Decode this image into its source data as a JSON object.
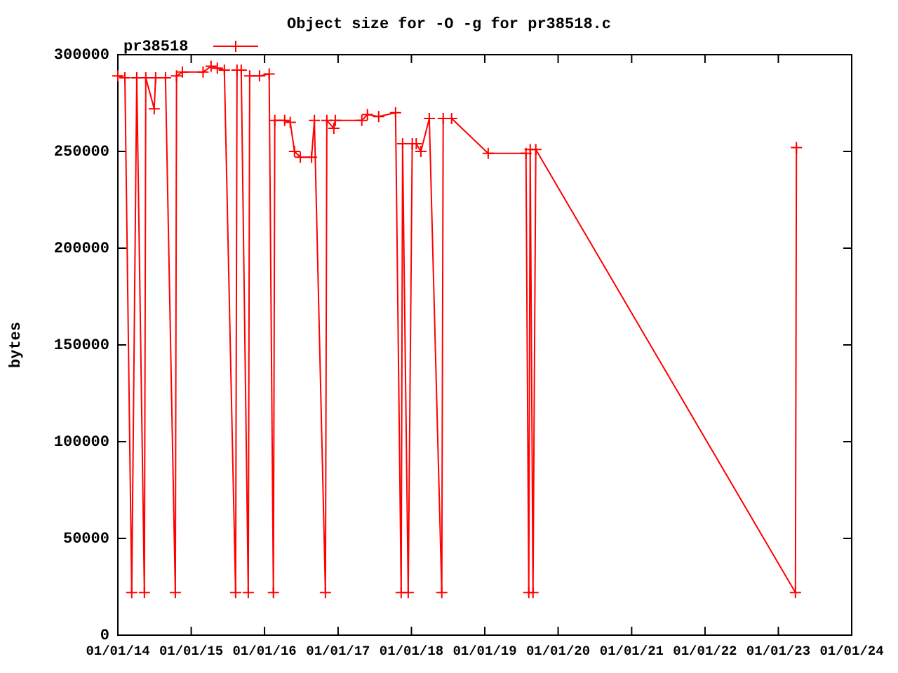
{
  "chart_data": {
    "type": "line",
    "title": "Object size for -O -g for pr38518.c",
    "ylabel": "bytes",
    "x": [
      "2014-01-01",
      "2014-02-05",
      "2014-03-11",
      "2014-04-05",
      "2014-05-13",
      "2014-05-20",
      "2014-07-01",
      "2014-07-08",
      "2014-08-26",
      "2014-10-14",
      "2014-10-20",
      "2014-11-18",
      "2015-03-01",
      "2015-04-10",
      "2015-05-11",
      "2015-06-15",
      "2015-08-10",
      "2015-08-17",
      "2015-09-07",
      "2015-10-12",
      "2015-10-19",
      "2015-12-07",
      "2016-01-24",
      "2016-02-14",
      "2016-02-21",
      "2016-04-10",
      "2016-05-08",
      "2016-05-29",
      "2016-06-27",
      "2016-08-22",
      "2016-09-05",
      "2016-10-30",
      "2016-11-06",
      "2016-12-11",
      "2016-12-18",
      "2017-04-29",
      "2017-05-27",
      "2017-07-22",
      "2017-10-14",
      "2017-11-11",
      "2017-11-18",
      "2017-12-16",
      "2018-01-05",
      "2018-01-25",
      "2018-02-17",
      "2018-03-31",
      "2018-06-01",
      "2018-06-08",
      "2018-07-20",
      "2019-01-18",
      "2019-07-25",
      "2019-08-08",
      "2019-08-15",
      "2019-08-29",
      "2019-09-12",
      "2023-03-27",
      "2023-04-01"
    ],
    "series": [
      {
        "name": "pr38518",
        "color": "#ff0000",
        "values": [
          289000,
          288000,
          22000,
          288000,
          22000,
          288000,
          272000,
          288000,
          288000,
          22000,
          289000,
          291000,
          291000,
          294000,
          293000,
          292000,
          22000,
          292000,
          292000,
          22000,
          289000,
          289000,
          290000,
          22000,
          266000,
          266000,
          265000,
          250000,
          247000,
          247000,
          266000,
          22000,
          266000,
          262000,
          266000,
          266000,
          269000,
          268000,
          270000,
          22000,
          254000,
          22000,
          254000,
          254000,
          250000,
          267000,
          22000,
          267000,
          267000,
          249000,
          249000,
          22000,
          251000,
          22000,
          251000,
          22000,
          252000
        ]
      }
    ],
    "xlim": [
      "2014-01-01",
      "2024-01-01"
    ],
    "xticks": [
      {
        "value": "2014-01-01",
        "label": "01/01/14"
      },
      {
        "value": "2015-01-01",
        "label": "01/01/15"
      },
      {
        "value": "2016-01-01",
        "label": "01/01/16"
      },
      {
        "value": "2017-01-01",
        "label": "01/01/17"
      },
      {
        "value": "2018-01-01",
        "label": "01/01/18"
      },
      {
        "value": "2019-01-01",
        "label": "01/01/19"
      },
      {
        "value": "2020-01-01",
        "label": "01/01/20"
      },
      {
        "value": "2021-01-01",
        "label": "01/01/21"
      },
      {
        "value": "2022-01-01",
        "label": "01/01/22"
      },
      {
        "value": "2023-01-01",
        "label": "01/01/23"
      },
      {
        "value": "2024-01-01",
        "label": "01/01/24"
      }
    ],
    "ylim": [
      0,
      300000
    ],
    "yticks": [
      0,
      50000,
      100000,
      150000,
      200000,
      250000,
      300000
    ],
    "marker": "cross",
    "line_style": "solid",
    "legend": "top left",
    "grid": false
  }
}
